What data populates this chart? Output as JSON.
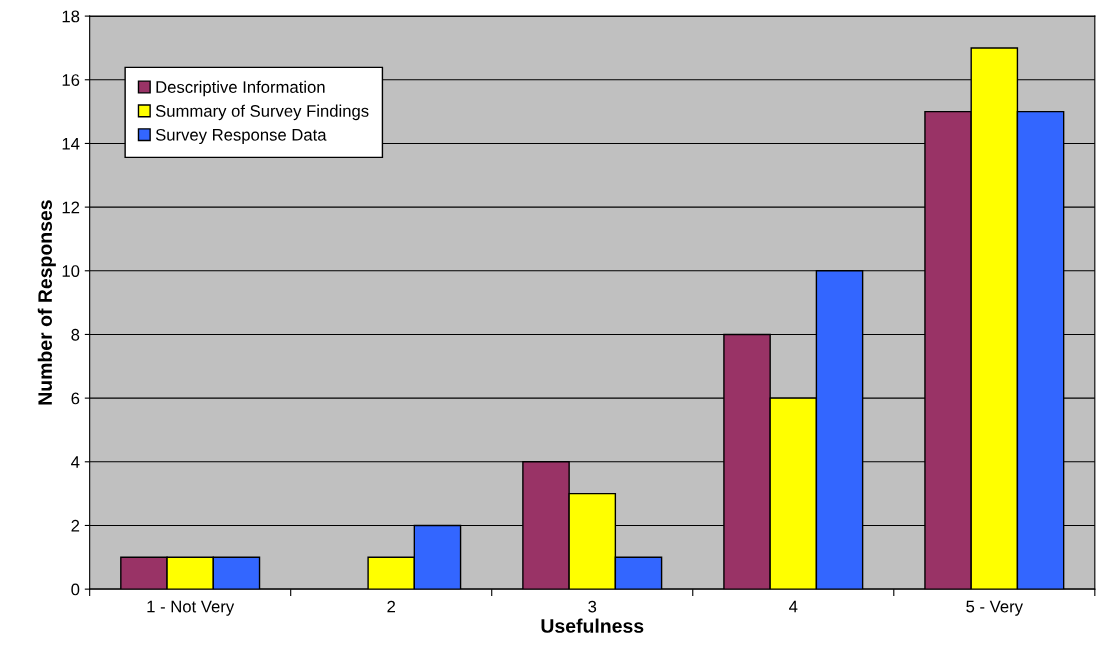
{
  "chart_data": {
    "type": "bar",
    "xlabel": "Usefulness",
    "ylabel": "Number of Responses",
    "categories": [
      "1 - Not Very",
      "2",
      "3",
      "4",
      "5 - Very"
    ],
    "series": [
      {
        "name": "Descriptive Information",
        "color": "#993366",
        "values": [
          1,
          null,
          4,
          8,
          15
        ]
      },
      {
        "name": "Summary of Survey Findings",
        "color": "#ffff00",
        "values": [
          1,
          1,
          3,
          6,
          17
        ]
      },
      {
        "name": "Survey Response Data",
        "color": "#3366ff",
        "values": [
          1,
          2,
          1,
          10,
          15
        ]
      }
    ],
    "ylim": [
      0,
      18
    ],
    "yticks": [
      0,
      2,
      4,
      6,
      8,
      10,
      12,
      14,
      16,
      18
    ],
    "grid": "y",
    "legend": "top left"
  }
}
